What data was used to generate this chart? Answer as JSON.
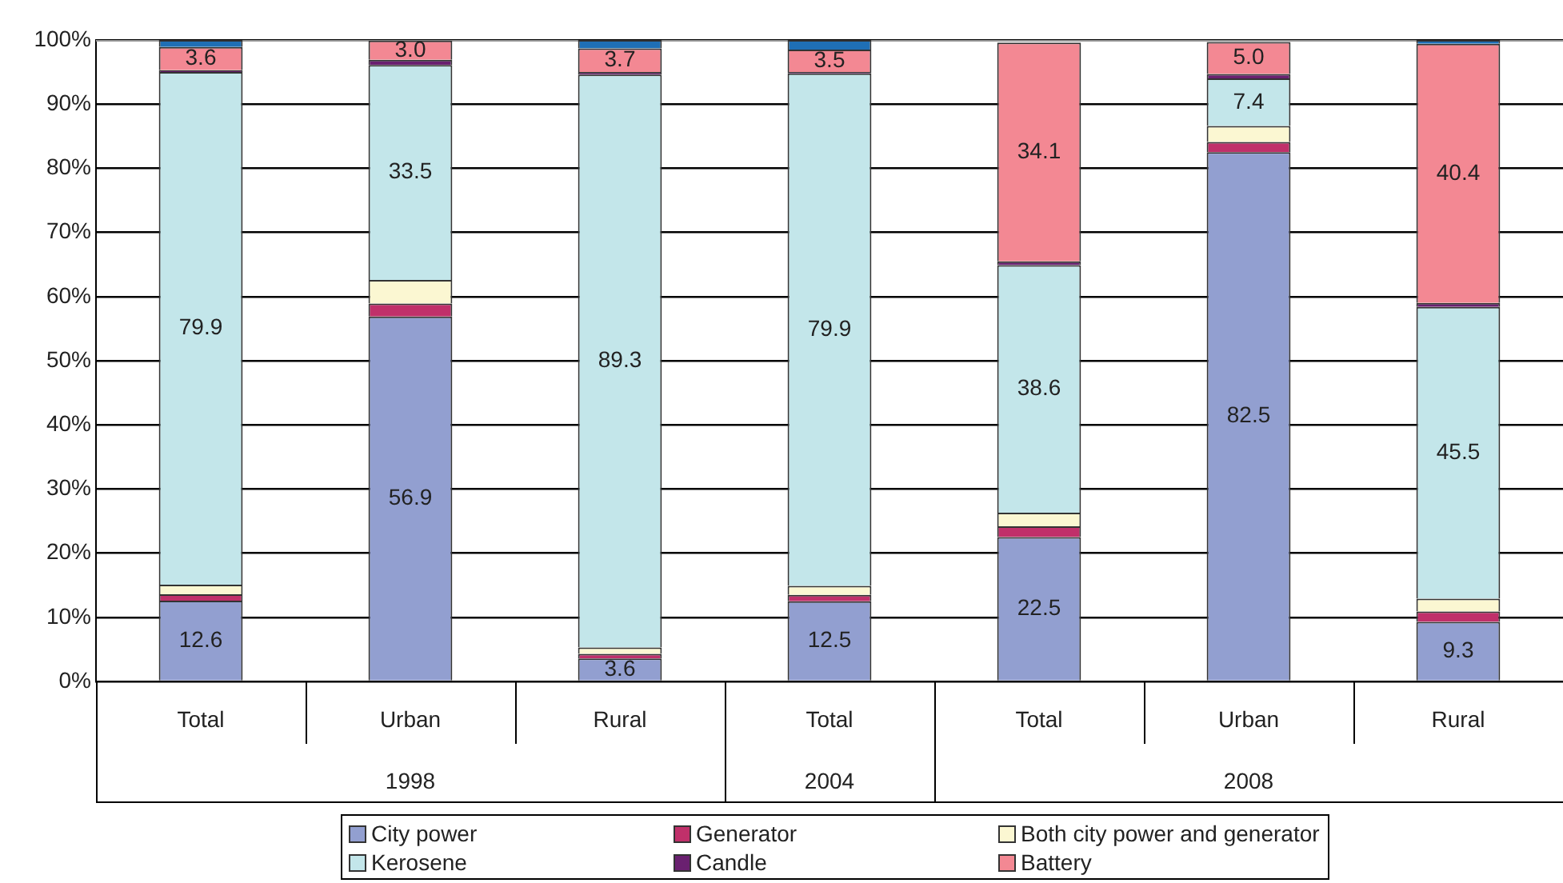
{
  "chart_data": {
    "type": "bar",
    "stacked": true,
    "categories": [
      "Total",
      "Urban",
      "Rural",
      "Total",
      "Total",
      "Urban",
      "Rural"
    ],
    "annotations": [
      "1998",
      "2004",
      "2008"
    ],
    "series": [
      {
        "name": "City power",
        "color": "#929fd0",
        "values": [
          12.6,
          56.9,
          3.6,
          12.5,
          22.5,
          82.5,
          9.3
        ],
        "value_labels": [
          "12.6",
          "56.9",
          "3.6",
          "12.5",
          "22.5",
          "82.5",
          "9.3"
        ]
      },
      {
        "name": "Generator",
        "color": "#c0306a",
        "values": [
          1.0,
          2.0,
          0.7,
          1.0,
          1.7,
          1.6,
          1.6
        ]
      },
      {
        "name": "Both city power and generator",
        "color": "#fbf7d2",
        "values": [
          1.5,
          3.7,
          1.0,
          1.4,
          2.1,
          2.5,
          2.0
        ]
      },
      {
        "name": "Kerosene",
        "color": "#c3e6ea",
        "values": [
          79.9,
          33.5,
          89.3,
          79.9,
          38.6,
          7.4,
          45.5
        ],
        "value_labels": [
          "79.9",
          "33.5",
          "89.3",
          "79.9",
          "38.6",
          "7.4",
          "45.5"
        ]
      },
      {
        "name": "Candle",
        "color": "#6a2070",
        "values": [
          0.3,
          0.8,
          0.4,
          0.2,
          0.6,
          0.7,
          0.6
        ]
      },
      {
        "name": "Battery",
        "color": "#f38893",
        "values": [
          3.6,
          3.0,
          3.7,
          3.5,
          34.1,
          5.0,
          40.4
        ],
        "value_labels": [
          "3.6",
          "3.0",
          "3.7",
          "3.5",
          "34.1",
          "5.0",
          "40.4"
        ]
      },
      {
        "color": "#1f6fb5",
        "values": [
          1.1,
          null,
          1.3,
          1.5,
          null,
          null,
          0.6
        ]
      }
    ],
    "ylim": [
      0,
      100
    ],
    "yticks": [
      {
        "value": 0,
        "label": "0%"
      },
      {
        "value": 10,
        "label": "10%"
      },
      {
        "value": 20,
        "label": "20%"
      },
      {
        "value": 30,
        "label": "30%"
      },
      {
        "value": 40,
        "label": "40%"
      },
      {
        "value": 50,
        "label": "50%"
      },
      {
        "value": 60,
        "label": "60%"
      },
      {
        "value": 70,
        "label": "70%"
      },
      {
        "value": 80,
        "label": "80%"
      },
      {
        "value": 90,
        "label": "90%"
      },
      {
        "value": 100,
        "label": "100%"
      }
    ],
    "grid": "y",
    "legend": "bottom"
  }
}
